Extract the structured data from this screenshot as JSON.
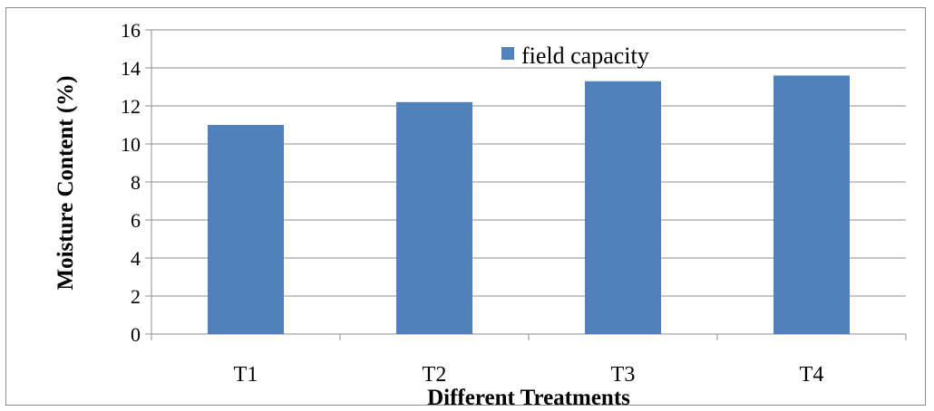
{
  "chart_data": {
    "type": "bar",
    "title": "",
    "xlabel": "Different Treatments",
    "ylabel": "Moisture Content (%)",
    "categories": [
      "T1",
      "T2",
      "T3",
      "T4"
    ],
    "series": [
      {
        "name": "field capacity",
        "values": [
          11.0,
          12.2,
          13.3,
          13.6
        ]
      }
    ],
    "ylim": [
      0,
      16
    ],
    "yticks": [
      0,
      2,
      4,
      6,
      8,
      10,
      12,
      14,
      16
    ],
    "grid": true,
    "legend": "top-center",
    "colors": {
      "bar": "#4f81bd",
      "grid": "#8c8c8c",
      "axis": "#8c8c8c"
    }
  }
}
